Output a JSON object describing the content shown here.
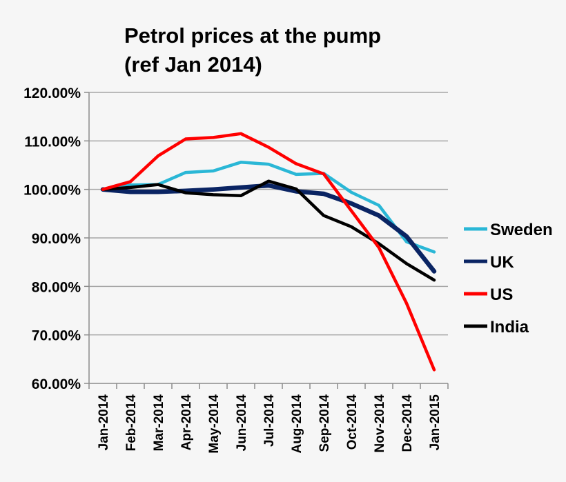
{
  "chart_data": {
    "type": "line",
    "title": [
      "Petrol prices at the pump",
      "(ref Jan 2014)"
    ],
    "xlabel": "",
    "ylabel": "",
    "categories": [
      "Jan-2014",
      "Feb-2014",
      "Mar-2014",
      "Apr-2014",
      "May-2014",
      "Jun-2014",
      "Jul-2014",
      "Aug-2014",
      "Sep-2014",
      "Oct-2014",
      "Nov-2014",
      "Dec-2014",
      "Jan-2015"
    ],
    "ylim": [
      60,
      120
    ],
    "yticks": [
      "60.00%",
      "70.00%",
      "80.00%",
      "90.00%",
      "100.00%",
      "110.00%",
      "120.00%"
    ],
    "grid": "horizontal",
    "legend_position": "right",
    "series": [
      {
        "name": "Sweden",
        "color": "#2ab7d6",
        "values": [
          100,
          100.9,
          101.0,
          103.5,
          103.8,
          105.6,
          105.2,
          103.1,
          103.3,
          99.4,
          96.7,
          89.2,
          87.1
        ]
      },
      {
        "name": "UK",
        "color": "#0a2463",
        "values": [
          100,
          99.5,
          99.5,
          99.7,
          100.0,
          100.4,
          100.8,
          99.6,
          99.1,
          97.1,
          94.6,
          90.3,
          83.1
        ]
      },
      {
        "name": "US",
        "color": "#ff0000",
        "values": [
          100,
          101.6,
          106.9,
          110.4,
          110.7,
          111.5,
          108.7,
          105.3,
          103.2,
          95.6,
          88.0,
          76.5,
          62.8
        ]
      },
      {
        "name": "India",
        "color": "#000000",
        "values": [
          100,
          100.4,
          101.0,
          99.3,
          98.9,
          98.7,
          101.7,
          100.1,
          94.6,
          92.3,
          88.8,
          84.7,
          81.3
        ]
      }
    ]
  }
}
